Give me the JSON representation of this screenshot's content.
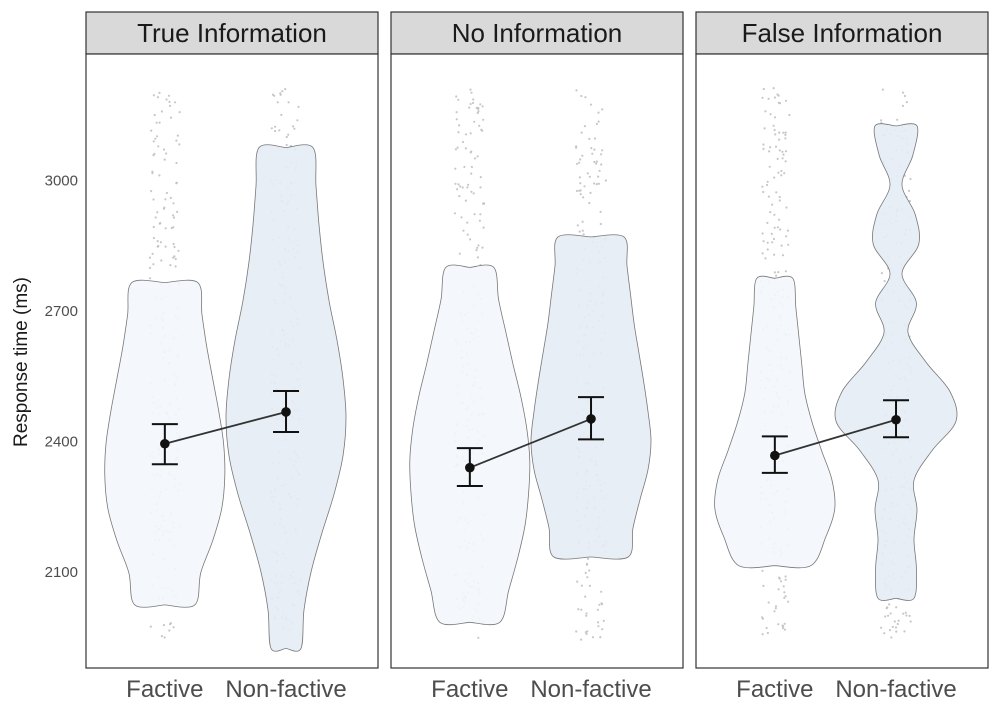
{
  "chart_data": {
    "type": "violin",
    "ylabel": "Response time (ms)",
    "yticks": [
      2100,
      2400,
      2700,
      3000
    ],
    "ylim": [
      1880,
      3290
    ],
    "categories": [
      "Factive",
      "Non-factive"
    ],
    "fill_colors": {
      "Factive": "#f3f7fc",
      "Non-factive": "#e4ecf5"
    },
    "outline_color": "#777777",
    "point_color": "#bdbdbd",
    "summary_color": "#111111",
    "panels": [
      {
        "facet": "True Information",
        "groups": [
          {
            "category": "Factive",
            "mean": 2395,
            "ci_low": 2348,
            "ci_high": 2440,
            "violin_range": [
              2025,
              2765
            ]
          },
          {
            "category": "Non-factive",
            "mean": 2468,
            "ci_low": 2422,
            "ci_high": 2516,
            "violin_range": [
              1925,
              3075
            ]
          }
        ]
      },
      {
        "facet": "No Information",
        "groups": [
          {
            "category": "Factive",
            "mean": 2340,
            "ci_low": 2298,
            "ci_high": 2385,
            "violin_range": [
              1985,
              2800
            ]
          },
          {
            "category": "Non-factive",
            "mean": 2452,
            "ci_low": 2405,
            "ci_high": 2502,
            "violin_range": [
              2135,
              2870
            ]
          }
        ]
      },
      {
        "facet": "False Information",
        "groups": [
          {
            "category": "Factive",
            "mean": 2368,
            "ci_low": 2328,
            "ci_high": 2412,
            "violin_range": [
              2115,
              2775
            ]
          },
          {
            "category": "Non-factive",
            "mean": 2450,
            "ci_low": 2410,
            "ci_high": 2495,
            "violin_range": [
              2040,
              3125
            ]
          }
        ]
      }
    ]
  }
}
